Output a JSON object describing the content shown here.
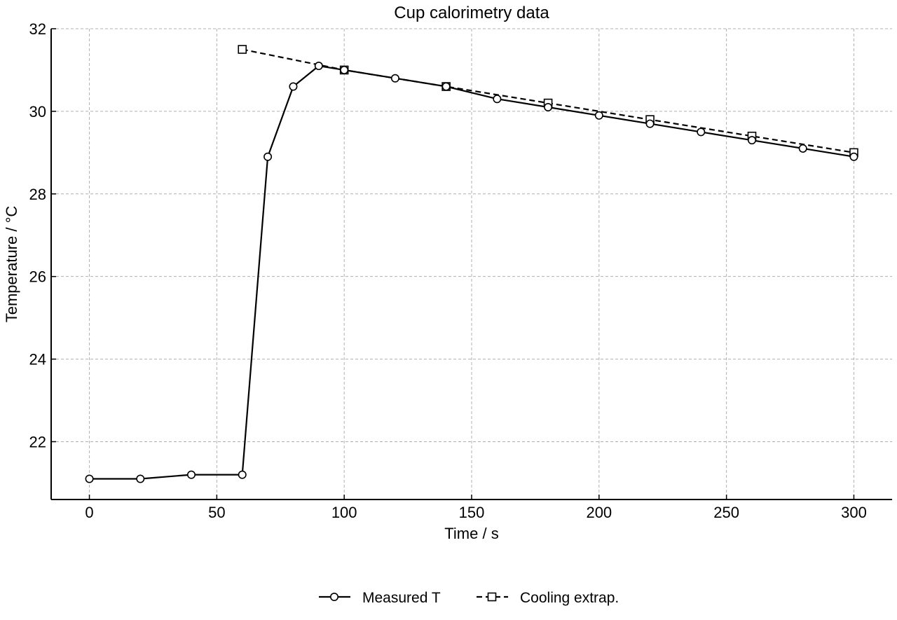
{
  "chart_data": {
    "type": "line",
    "title": "Cup calorimetry data",
    "xlabel": "Time / s",
    "ylabel": "Temperature / °C",
    "xlim": [
      -15,
      315
    ],
    "ylim": [
      20.6,
      32
    ],
    "xticks": [
      0,
      50,
      100,
      150,
      200,
      250,
      300
    ],
    "yticks": [
      22,
      24,
      26,
      28,
      30,
      32
    ],
    "grid": true,
    "legend_position": "bottom-center",
    "series": [
      {
        "name": "Measured T",
        "color": "#000000",
        "line_style": "solid",
        "marker": "circle",
        "x": [
          0,
          20,
          40,
          60,
          70,
          80,
          90,
          100,
          120,
          140,
          160,
          180,
          200,
          220,
          240,
          260,
          280,
          300
        ],
        "y": [
          21.1,
          21.1,
          21.2,
          21.2,
          28.9,
          30.6,
          31.1,
          31.0,
          30.8,
          30.6,
          30.3,
          30.1,
          29.9,
          29.7,
          29.5,
          29.3,
          29.1,
          28.9
        ]
      },
      {
        "name": "Cooling extrap.",
        "color": "#000000",
        "line_style": "dashed",
        "marker": "square",
        "x": [
          60,
          100,
          140,
          180,
          220,
          260,
          300
        ],
        "y": [
          31.5,
          31.0,
          30.6,
          30.2,
          29.8,
          29.4,
          29.0
        ]
      }
    ]
  }
}
